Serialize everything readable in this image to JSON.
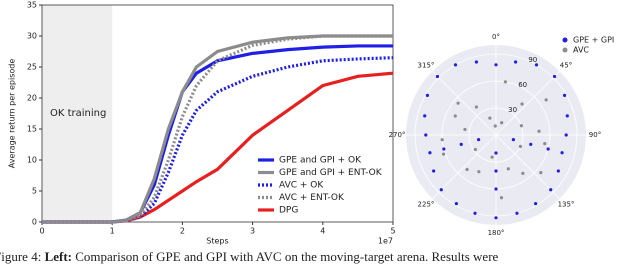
{
  "chart_data": [
    {
      "type": "line",
      "ylabel": "Average return per episode",
      "xlabel": "Steps",
      "x_offset_label": "1e7",
      "region": {
        "x": [
          0,
          1
        ],
        "label": "OK training"
      },
      "x": [
        0,
        0.5,
        1,
        1.2,
        1.4,
        1.6,
        1.8,
        2,
        2.2,
        2.5,
        3,
        3.5,
        4,
        4.5,
        5
      ],
      "series": [
        {
          "name": "GPE and GPI + OK",
          "color": "#1f1fe6",
          "linestyle": "solid",
          "values": [
            0,
            0,
            0,
            0.3,
            1.5,
            6,
            14,
            21,
            24,
            26,
            27.2,
            27.8,
            28.2,
            28.4,
            28.4
          ]
        },
        {
          "name": "GPE and GPI + ENT-OK",
          "color": "#8c8c8c",
          "linestyle": "solid",
          "values": [
            0,
            0,
            0,
            0.3,
            1.5,
            7,
            15,
            21,
            25,
            27.5,
            29,
            29.7,
            30,
            30,
            30
          ]
        },
        {
          "name": "AVC + OK",
          "color": "#1f1fe6",
          "linestyle": "dotted",
          "values": [
            0,
            0,
            0,
            0.2,
            0.8,
            3,
            8,
            14,
            18,
            21,
            23.5,
            25,
            26,
            26.3,
            26.5
          ]
        },
        {
          "name": "AVC + ENT-OK",
          "color": "#8c8c8c",
          "linestyle": "dotted",
          "values": [
            0,
            0,
            0,
            0.2,
            1,
            4,
            10,
            17,
            22,
            26,
            28.5,
            29.5,
            30,
            30,
            30
          ]
        },
        {
          "name": "DPG",
          "color": "#e61f1f",
          "linestyle": "solid",
          "values": [
            0,
            0,
            0,
            0.2,
            0.8,
            2,
            3.5,
            5,
            6.5,
            8.5,
            14,
            18,
            22,
            23.5,
            24
          ]
        }
      ],
      "xlim": [
        0,
        5
      ],
      "xticks": [
        0,
        1,
        2,
        3,
        4,
        5
      ],
      "ylim": [
        0,
        35
      ],
      "yticks": [
        0,
        5,
        10,
        15,
        20,
        25,
        30,
        35
      ],
      "legend": "lower right"
    },
    {
      "type": "polar-scatter",
      "rlim": [
        0,
        100
      ],
      "rticks": [
        30,
        60,
        90
      ],
      "thetaticks": [
        {
          "value": 0,
          "label": "0°"
        },
        {
          "value": 45,
          "label": "45°"
        },
        {
          "value": 90,
          "label": "90°"
        },
        {
          "value": 135,
          "label": "135°"
        },
        {
          "value": 180,
          "label": "180°"
        },
        {
          "value": 225,
          "label": "225°"
        },
        {
          "value": 270,
          "label": "270°"
        },
        {
          "value": 315,
          "label": "315°"
        }
      ],
      "series": [
        {
          "name": "GPE + GPI",
          "color": "#1f1fe6",
          "theta": [
            0,
            15,
            30,
            45,
            60,
            75,
            90,
            105,
            120,
            135,
            150,
            165,
            180,
            195,
            210,
            225,
            240,
            255,
            270,
            285,
            300,
            315,
            330,
            345,
            105,
            105,
            105,
            180,
            180,
            180,
            255,
            255,
            255
          ],
          "r": [
            78,
            84,
            90,
            92,
            88,
            82,
            78,
            76,
            80,
            86,
            88,
            90,
            92,
            90,
            88,
            86,
            80,
            76,
            78,
            82,
            88,
            92,
            90,
            84,
            20,
            40,
            60,
            20,
            40,
            60,
            20,
            40,
            60
          ]
        },
        {
          "name": "AVC",
          "color": "#8c8c8c",
          "theta": [
            10,
            40,
            70,
            100,
            130,
            160,
            190,
            220,
            250,
            280,
            310,
            340,
            25,
            55,
            85,
            115,
            145,
            175,
            205,
            235,
            265,
            295,
            325,
            355
          ],
          "r": [
            60,
            45,
            30,
            55,
            65,
            40,
            25,
            50,
            62,
            35,
            55,
            20,
            15,
            68,
            48,
            30,
            52,
            70,
            45,
            28,
            60,
            50,
            38,
            10
          ]
        }
      ],
      "legend": "upper right"
    }
  ],
  "caption": {
    "label": "Figure 4:",
    "bold": "Left:",
    "text": "Comparison of GPE and GPI with AVC on the moving-target arena. Results were"
  }
}
